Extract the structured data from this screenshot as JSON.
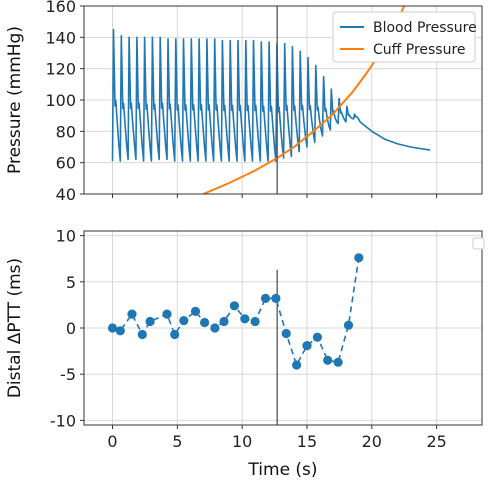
{
  "chart_data": [
    {
      "type": "line",
      "ylabel": "Pressure (mmHg)",
      "xlim": [
        -2.2,
        28.5
      ],
      "ylim": [
        40,
        160
      ],
      "xticks": [
        0,
        5,
        10,
        15,
        20,
        25
      ],
      "yticks": [
        40,
        60,
        80,
        100,
        120,
        140,
        160
      ],
      "grid": true,
      "legend": "top-right",
      "vline_x": 12.7,
      "series": [
        {
          "name": "Blood Pressure",
          "color": "#1f77b4",
          "beat_times": [
            0.0,
            0.6,
            1.2,
            1.8,
            2.4,
            3.0,
            3.6,
            4.2,
            4.8,
            5.4,
            6.0,
            6.6,
            7.2,
            7.8,
            8.4,
            9.0,
            9.6,
            10.2,
            10.8,
            11.4,
            12.0,
            12.6,
            13.2,
            13.8,
            14.4,
            15.0,
            15.6,
            16.2,
            16.8,
            17.4,
            18.0,
            18.6
          ],
          "systolic": [
            145,
            141,
            140,
            140,
            140,
            140,
            140,
            139,
            139,
            139,
            139,
            139,
            139,
            139,
            138,
            138,
            138,
            138,
            138,
            137,
            137,
            136,
            136,
            134,
            131,
            127,
            122,
            115,
            107,
            101,
            96,
            91
          ],
          "diastolic": [
            61,
            61,
            62,
            62,
            61,
            61,
            62,
            62,
            61,
            61,
            61,
            61,
            61,
            61,
            61,
            61,
            61,
            61,
            61,
            61,
            61,
            61,
            63,
            64,
            67,
            70,
            73,
            77,
            81,
            85,
            86,
            88
          ],
          "decay": {
            "x": [
              19.1,
              20,
              21,
              22,
              23,
              24.5
            ],
            "y": [
              86,
              80,
              75,
              72,
              70,
              68
            ]
          }
        },
        {
          "name": "Cuff Pressure",
          "color": "#ff7f0e",
          "x": [
            7.0,
            9.0,
            11.0,
            12.7,
            14.0,
            15.5,
            17.0,
            18.5,
            19.5,
            20.5,
            21.5,
            22.5
          ],
          "y": [
            40,
            47,
            55,
            63,
            70,
            80,
            91,
            105,
            116,
            128,
            143,
            160
          ]
        }
      ]
    },
    {
      "type": "line",
      "xlabel": "Time (s)",
      "ylabel": "Distal ΔPTT (ms)",
      "xlim": [
        -2.2,
        28.5
      ],
      "ylim": [
        -10.5,
        10.5
      ],
      "xticks": [
        0,
        5,
        10,
        15,
        20,
        25
      ],
      "yticks": [
        -10,
        -5,
        0,
        5,
        10
      ],
      "grid": true,
      "legend": "top-right",
      "vline_x": 12.7,
      "series": [
        {
          "color": "#1f77b4",
          "style": "dashed-markers",
          "x": [
            0.0,
            0.6,
            1.5,
            2.3,
            2.9,
            4.2,
            4.8,
            5.5,
            6.4,
            7.1,
            7.9,
            8.6,
            9.4,
            10.2,
            11.0,
            11.8,
            12.6,
            13.4,
            14.2,
            15.0,
            15.8,
            16.6,
            17.4,
            18.2,
            19.0
          ],
          "y": [
            0.0,
            -0.3,
            1.5,
            -0.7,
            0.7,
            1.5,
            -0.7,
            0.8,
            1.8,
            0.6,
            0.0,
            0.7,
            2.4,
            1.0,
            0.7,
            3.2,
            3.2,
            -0.6,
            -4.0,
            -1.9,
            -1.0,
            -3.5,
            -3.7,
            0.3,
            7.6
          ]
        }
      ]
    }
  ]
}
